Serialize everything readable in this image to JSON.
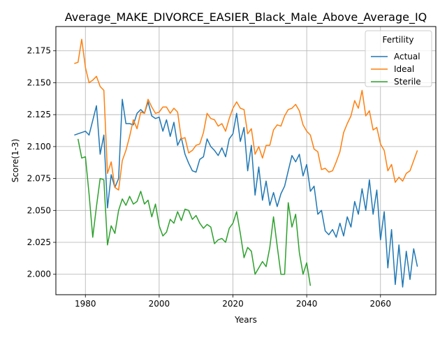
{
  "chart_data": {
    "type": "line",
    "title": "Average_MAKE_DIVORCE_EASIER_Black_Male_Above_Average_IQ",
    "xlabel": "Years",
    "ylabel": "Score(1-3)",
    "xlim": [
      1972,
      2075
    ],
    "ylim": [
      1.984,
      2.194
    ],
    "x_ticks": [
      1980,
      2000,
      2020,
      2040,
      2060
    ],
    "y_ticks": [
      2.0,
      2.025,
      2.05,
      2.075,
      2.1,
      2.125,
      2.15,
      2.175
    ],
    "x_tick_labels": [
      "1980",
      "2000",
      "2020",
      "2040",
      "2060"
    ],
    "y_tick_labels": [
      "2.000",
      "2.025",
      "2.050",
      "2.075",
      "2.100",
      "2.125",
      "2.150",
      "2.175"
    ],
    "grid": true,
    "legend": {
      "title": "Fertility",
      "position": "top-right",
      "entries": [
        "Actual",
        "Ideal",
        "Sterile"
      ]
    },
    "series": [
      {
        "name": "Actual",
        "color": "#1f77b4",
        "x": [
          1977,
          1978,
          1980,
          1981,
          1983,
          1984,
          1985,
          1986,
          1987,
          1988,
          1989,
          1990,
          1991,
          1992,
          1993,
          1994,
          1995,
          1996,
          1997,
          1998,
          1999,
          2000,
          2001,
          2002,
          2003,
          2004,
          2005,
          2006,
          2007,
          2008,
          2009,
          2010,
          2011,
          2012,
          2013,
          2014,
          2015,
          2016,
          2017,
          2018,
          2019,
          2020,
          2021,
          2022,
          2023,
          2024,
          2025,
          2026,
          2027,
          2028,
          2029,
          2030,
          2031,
          2032,
          2033,
          2034,
          2035,
          2036,
          2037,
          2038,
          2039,
          2040,
          2041,
          2042,
          2043,
          2044,
          2045,
          2046,
          2047,
          2048,
          2049,
          2050,
          2051,
          2052,
          2053,
          2054,
          2055,
          2056,
          2057,
          2058,
          2059,
          2060,
          2061,
          2062,
          2063,
          2064,
          2065,
          2066,
          2067,
          2068,
          2069,
          2070
        ],
        "values": [
          2.109,
          2.11,
          2.112,
          2.109,
          2.132,
          2.094,
          2.109,
          2.052,
          2.078,
          2.068,
          2.075,
          2.137,
          2.118,
          2.118,
          2.117,
          2.126,
          2.129,
          2.126,
          2.135,
          2.124,
          2.122,
          2.123,
          2.112,
          2.121,
          2.108,
          2.119,
          2.101,
          2.107,
          2.094,
          2.087,
          2.081,
          2.08,
          2.09,
          2.092,
          2.106,
          2.1,
          2.097,
          2.093,
          2.099,
          2.092,
          2.106,
          2.11,
          2.126,
          2.104,
          2.115,
          2.081,
          2.101,
          2.062,
          2.084,
          2.058,
          2.073,
          2.054,
          2.064,
          2.053,
          2.063,
          2.069,
          2.081,
          2.093,
          2.088,
          2.094,
          2.077,
          2.086,
          2.065,
          2.069,
          2.047,
          2.05,
          2.034,
          2.031,
          2.035,
          2.029,
          2.04,
          2.03,
          2.045,
          2.037,
          2.057,
          2.047,
          2.067,
          2.05,
          2.074,
          2.047,
          2.066,
          2.027,
          2.049,
          2.005,
          2.035,
          1.992,
          2.023,
          1.99,
          2.018,
          1.996,
          2.02,
          2.006
        ]
      },
      {
        "name": "Ideal",
        "color": "#ff7f0e",
        "x": [
          1977,
          1978,
          1979,
          1980,
          1981,
          1982,
          1983,
          1984,
          1985,
          1986,
          1987,
          1988,
          1989,
          1990,
          1991,
          1992,
          1993,
          1994,
          1995,
          1996,
          1997,
          1998,
          1999,
          2000,
          2001,
          2002,
          2003,
          2004,
          2005,
          2006,
          2007,
          2008,
          2009,
          2010,
          2011,
          2012,
          2013,
          2014,
          2015,
          2016,
          2017,
          2018,
          2019,
          2020,
          2021,
          2022,
          2023,
          2024,
          2025,
          2026,
          2027,
          2028,
          2029,
          2030,
          2031,
          2032,
          2033,
          2034,
          2035,
          2036,
          2037,
          2038,
          2039,
          2040,
          2041,
          2042,
          2043,
          2044,
          2045,
          2046,
          2047,
          2048,
          2049,
          2050,
          2051,
          2052,
          2053,
          2054,
          2055,
          2056,
          2057,
          2058,
          2059,
          2060,
          2061,
          2062,
          2063,
          2064,
          2065,
          2066,
          2067,
          2068,
          2069,
          2070
        ],
        "values": [
          2.165,
          2.166,
          2.184,
          2.162,
          2.15,
          2.152,
          2.155,
          2.147,
          2.144,
          2.079,
          2.088,
          2.068,
          2.066,
          2.089,
          2.097,
          2.108,
          2.121,
          2.114,
          2.127,
          2.126,
          2.137,
          2.131,
          2.126,
          2.127,
          2.131,
          2.131,
          2.126,
          2.13,
          2.127,
          2.106,
          2.107,
          2.095,
          2.097,
          2.101,
          2.102,
          2.111,
          2.126,
          2.122,
          2.121,
          2.116,
          2.118,
          2.112,
          2.122,
          2.13,
          2.135,
          2.13,
          2.129,
          2.11,
          2.114,
          2.094,
          2.1,
          2.091,
          2.101,
          2.101,
          2.113,
          2.117,
          2.116,
          2.124,
          2.129,
          2.13,
          2.133,
          2.128,
          2.117,
          2.112,
          2.109,
          2.098,
          2.096,
          2.082,
          2.083,
          2.08,
          2.081,
          2.088,
          2.096,
          2.111,
          2.118,
          2.124,
          2.136,
          2.13,
          2.144,
          2.124,
          2.128,
          2.113,
          2.115,
          2.102,
          2.097,
          2.081,
          2.086,
          2.072,
          2.076,
          2.073,
          2.079,
          2.081,
          2.089,
          2.097
        ]
      },
      {
        "name": "Sterile",
        "color": "#2ca02c",
        "x": [
          1978,
          1979,
          1980,
          1981,
          1982,
          1983,
          1984,
          1985,
          1986,
          1987,
          1988,
          1989,
          1990,
          1991,
          1992,
          1993,
          1994,
          1995,
          1996,
          1997,
          1998,
          1999,
          2000,
          2001,
          2002,
          2003,
          2004,
          2005,
          2006,
          2007,
          2008,
          2009,
          2010,
          2011,
          2012,
          2013,
          2014,
          2015,
          2016,
          2017,
          2018,
          2019,
          2020,
          2021,
          2022,
          2023,
          2024,
          2025,
          2026,
          2027,
          2028,
          2029,
          2030,
          2031,
          2032,
          2033,
          2034,
          2035,
          2036,
          2037,
          2038,
          2039,
          2040,
          2041
        ],
        "values": [
          2.106,
          2.091,
          2.092,
          2.063,
          2.029,
          2.053,
          2.075,
          2.074,
          2.023,
          2.038,
          2.032,
          2.05,
          2.059,
          2.054,
          2.061,
          2.055,
          2.057,
          2.065,
          2.055,
          2.058,
          2.045,
          2.055,
          2.038,
          2.03,
          2.033,
          2.043,
          2.04,
          2.049,
          2.042,
          2.051,
          2.05,
          2.043,
          2.046,
          2.04,
          2.036,
          2.039,
          2.037,
          2.024,
          2.027,
          2.028,
          2.025,
          2.036,
          2.04,
          2.049,
          2.032,
          2.013,
          2.021,
          2.018,
          2.0,
          2.005,
          2.01,
          2.006,
          2.021,
          2.045,
          2.022,
          2.0,
          2.0,
          2.056,
          2.037,
          2.047,
          2.017,
          2.0,
          2.009,
          1.991
        ]
      }
    ]
  }
}
